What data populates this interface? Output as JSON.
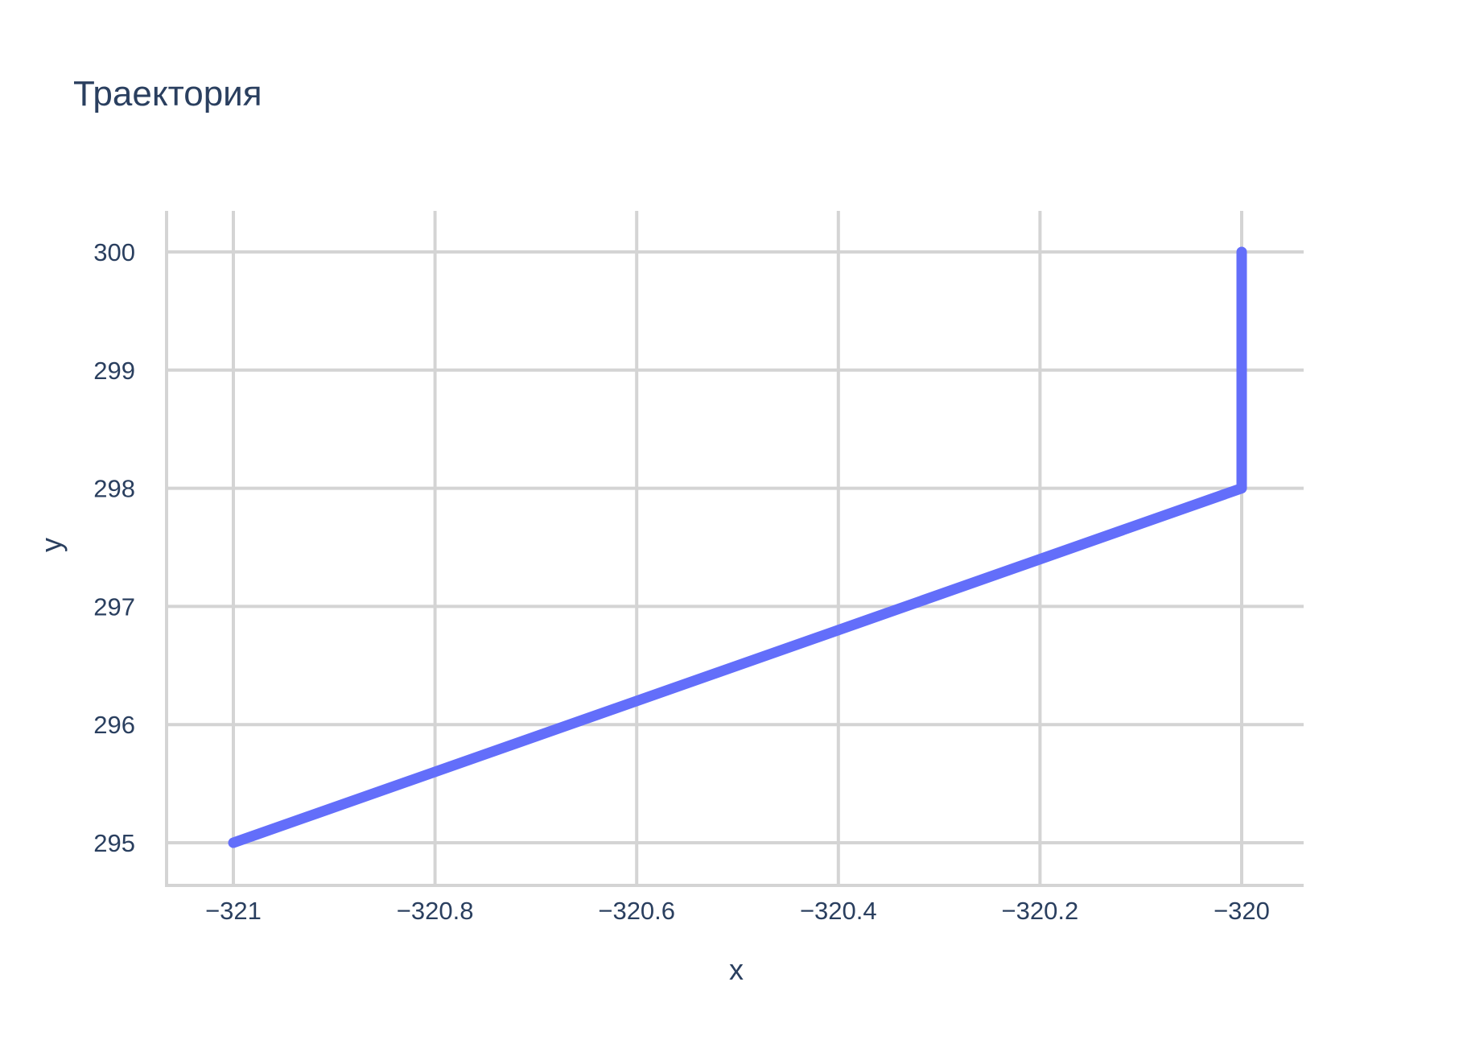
{
  "chart_data": {
    "type": "line",
    "title": "Траектория",
    "xlabel": "x",
    "ylabel": "y",
    "xlim": [
      -321.0,
      -320.0
    ],
    "ylim": [
      295,
      300
    ],
    "x_ticks": [
      -321,
      -320.8,
      -320.6,
      -320.4,
      -320.2,
      -320
    ],
    "x_tick_labels": [
      "−321",
      "−320.8",
      "−320.6",
      "−320.4",
      "−320.2",
      "−320"
    ],
    "y_ticks": [
      295,
      296,
      297,
      298,
      299,
      300
    ],
    "y_tick_labels": [
      "295",
      "296",
      "297",
      "298",
      "299",
      "300"
    ],
    "grid": true,
    "series": [
      {
        "color": "#636efa",
        "x": [
          -321,
          -320,
          -320
        ],
        "y": [
          295,
          298,
          300
        ]
      }
    ]
  }
}
